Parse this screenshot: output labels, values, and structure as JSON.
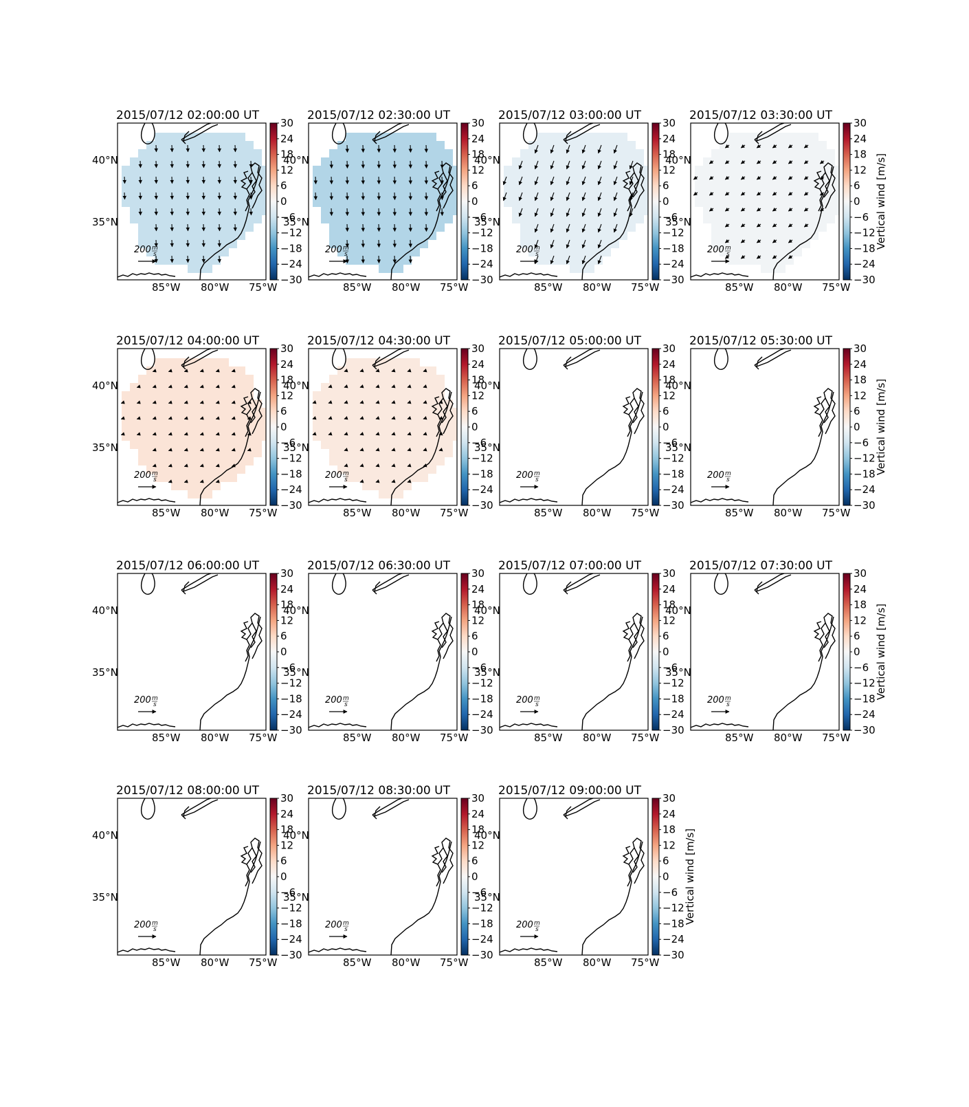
{
  "figure": {
    "colorbar": {
      "ticks": [
        "30",
        "24",
        "18",
        "12",
        "6",
        "0",
        "−6",
        "−12",
        "−18",
        "−24",
        "−30"
      ],
      "label": "Vertical wind [m/s]",
      "range": [
        -30,
        30
      ],
      "colormap": "RdBu_r"
    },
    "axes": {
      "xticks": [
        "85°W",
        "80°W",
        "75°W"
      ],
      "yticks": [
        "40°N",
        "35°N"
      ],
      "lon_range": [
        -89.5,
        -74.5
      ],
      "lat_range": [
        30.5,
        43
      ]
    },
    "reference_vector": {
      "magnitude": "200",
      "units": "m/s"
    },
    "panels": [
      {
        "title": "2015/07/12 02:00:00 UT",
        "vertical_wind": -7,
        "arrow_dir": "S",
        "arrow_len": 0.7,
        "shape": "A"
      },
      {
        "title": "2015/07/12 02:30:00 UT",
        "vertical_wind": -9,
        "arrow_dir": "S",
        "arrow_len": 0.75,
        "shape": "A"
      },
      {
        "title": "2015/07/12 03:00:00 UT",
        "vertical_wind": -3,
        "arrow_dir": "SSW",
        "arrow_len": 0.9,
        "shape": "A"
      },
      {
        "title": "2015/07/12 03:30:00 UT",
        "vertical_wind": -1,
        "arrow_dir": "SW",
        "arrow_len": 0.5,
        "shape": "A"
      },
      {
        "title": "2015/07/12 04:00:00 UT",
        "vertical_wind": 4,
        "arrow_dir": "WSW",
        "arrow_len": 0.35,
        "shape": "B"
      },
      {
        "title": "2015/07/12 04:30:00 UT",
        "vertical_wind": 3,
        "arrow_dir": "WSW",
        "arrow_len": 0.3,
        "shape": "B"
      },
      {
        "title": "2015/07/12 05:00:00 UT",
        "vertical_wind": null
      },
      {
        "title": "2015/07/12 05:30:00 UT",
        "vertical_wind": null
      },
      {
        "title": "2015/07/12 06:00:00 UT",
        "vertical_wind": null
      },
      {
        "title": "2015/07/12 06:30:00 UT",
        "vertical_wind": null
      },
      {
        "title": "2015/07/12 07:00:00 UT",
        "vertical_wind": null
      },
      {
        "title": "2015/07/12 07:30:00 UT",
        "vertical_wind": null
      },
      {
        "title": "2015/07/12 08:00:00 UT",
        "vertical_wind": null
      },
      {
        "title": "2015/07/12 08:30:00 UT",
        "vertical_wind": null
      },
      {
        "title": "2015/07/12 09:00:00 UT",
        "vertical_wind": null
      }
    ]
  }
}
